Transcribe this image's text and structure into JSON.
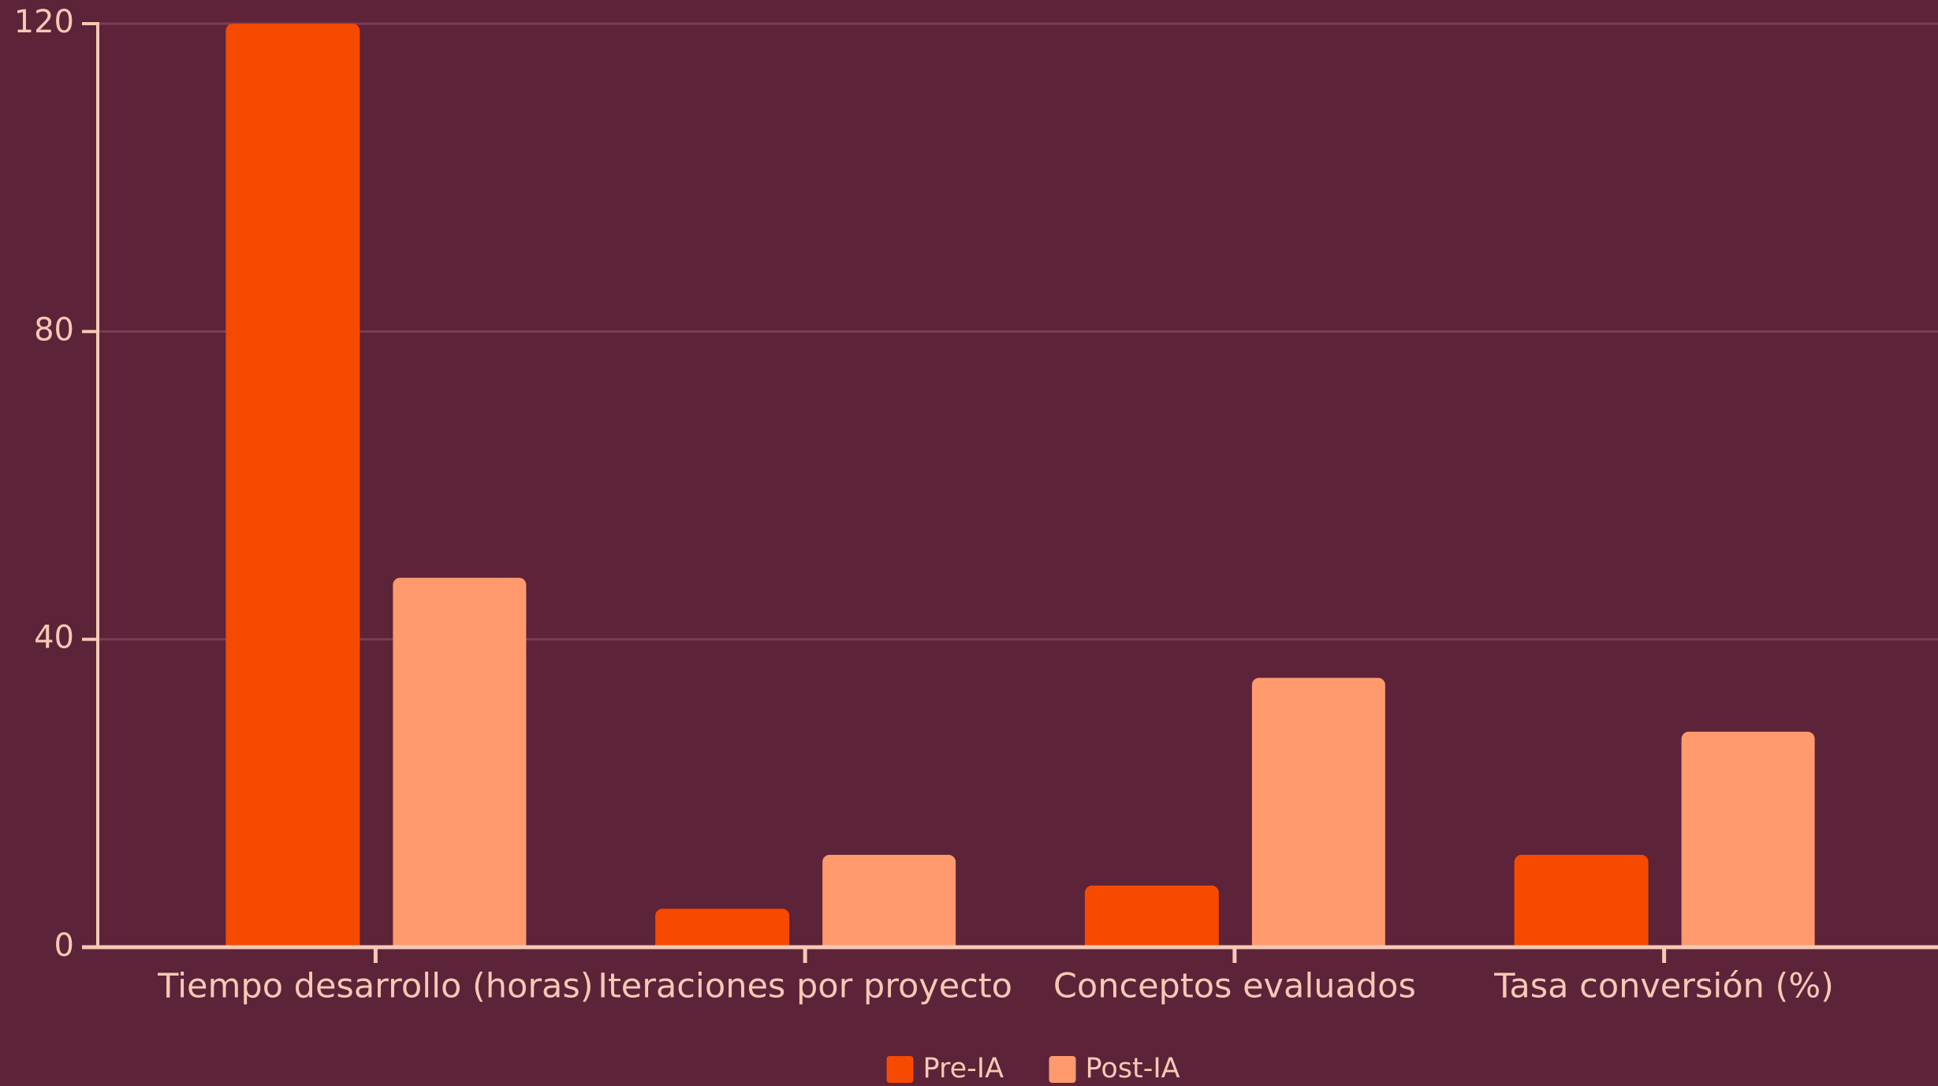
{
  "chart_data": {
    "type": "bar",
    "categories": [
      "Tiempo desarrollo (horas)",
      "Iteraciones por proyecto",
      "Conceptos evaluados",
      "Tasa conversión (%)"
    ],
    "series": [
      {
        "name": "Pre-IA",
        "color": "#f54a00",
        "values": [
          120,
          5,
          8,
          12
        ]
      },
      {
        "name": "Post-IA",
        "color": "#ff9a6e",
        "values": [
          48,
          12,
          35,
          28
        ]
      }
    ],
    "ylim": [
      0,
      120
    ],
    "yticks": [
      0,
      40,
      80,
      120
    ],
    "grid": true,
    "legend": "bottom"
  }
}
